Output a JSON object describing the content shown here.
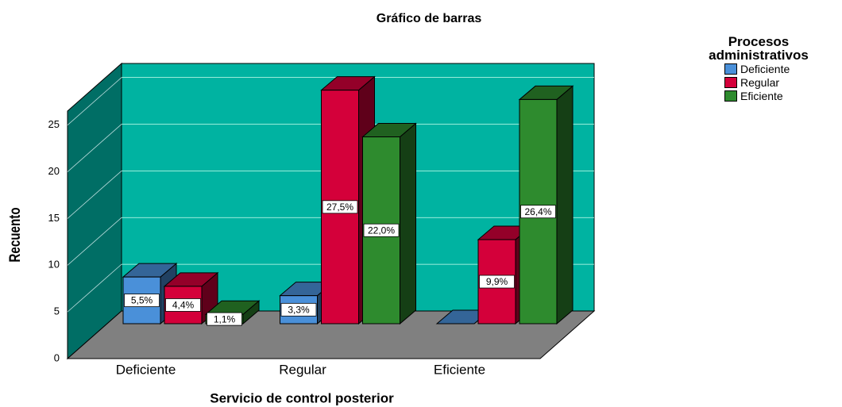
{
  "chart_data": {
    "type": "bar3d",
    "title": "Gráfico de barras",
    "x_label": "Servicio de control posterior",
    "y_label": "Recuento",
    "legend_title": "Procesos administrativos",
    "legend": "top-right",
    "categories": [
      "Deficiente",
      "Regular",
      "Eficiente"
    ],
    "series": [
      {
        "name": "Deficiente",
        "color": "#4a90d9",
        "values": [
          5,
          3,
          0
        ],
        "value_labels": [
          "5,5%",
          "3,3%",
          null
        ]
      },
      {
        "name": "Regular",
        "color": "#d4003a",
        "values": [
          4,
          25,
          9
        ],
        "value_labels": [
          "4,4%",
          "27,5%",
          "9,9%"
        ]
      },
      {
        "name": "Eficiente",
        "color": "#2e8b2e",
        "values": [
          1,
          20,
          24
        ],
        "value_labels": [
          "1,1%",
          "22,0%",
          "26,4%"
        ]
      }
    ],
    "ylim": [
      0,
      26.5
    ],
    "yticks": [
      0,
      5,
      10,
      15,
      20,
      25
    ],
    "grid": true
  }
}
